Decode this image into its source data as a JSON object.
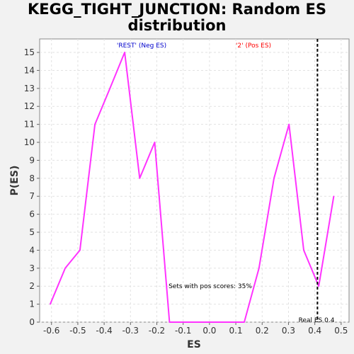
{
  "title_line1": "KEGG_TIGHT_JUNCTION: Random ES",
  "title_line2": "distribution",
  "chart_data": {
    "type": "line",
    "xlabel": "ES",
    "ylabel": "P(ES)",
    "xlim": [
      -0.645,
      0.53
    ],
    "ylim": [
      0,
      15.75
    ],
    "x_ticks": [
      -0.6,
      -0.5,
      -0.4,
      -0.3,
      -0.2,
      -0.1,
      0.0,
      0.1,
      0.2,
      0.3,
      0.4,
      0.5
    ],
    "x_tick_labels": [
      "-0.6",
      "-0.5",
      "-0.4",
      "-0.3",
      "-0.2",
      "-0.1",
      "0.0",
      "0.1",
      "0.2",
      "0.3",
      "0.4",
      "0.5"
    ],
    "y_ticks": [
      0,
      1,
      2,
      3,
      4,
      5,
      6,
      7,
      8,
      9,
      10,
      11,
      12,
      13,
      14,
      15
    ],
    "y_tick_labels": [
      "0",
      "1",
      "2",
      "3",
      "4",
      "5",
      "6",
      "7",
      "8",
      "9",
      "10",
      "11",
      "12",
      "13",
      "14",
      "15"
    ],
    "grid": true,
    "series": [
      {
        "color": "#ff33ff",
        "points": [
          [
            -0.605,
            1
          ],
          [
            -0.548,
            3
          ],
          [
            -0.492,
            4
          ],
          [
            -0.435,
            11
          ],
          [
            -0.378,
            13
          ],
          [
            -0.322,
            15
          ],
          [
            -0.265,
            8
          ],
          [
            -0.208,
            10
          ],
          [
            -0.152,
            0
          ],
          [
            -0.095,
            0
          ],
          [
            -0.038,
            0
          ],
          [
            0.018,
            0
          ],
          [
            0.075,
            0
          ],
          [
            0.132,
            0
          ],
          [
            0.188,
            3
          ],
          [
            0.245,
            8
          ],
          [
            0.302,
            11
          ],
          [
            0.358,
            4
          ],
          [
            0.415,
            2
          ],
          [
            0.472,
            7
          ]
        ]
      }
    ],
    "real_es": 0.41,
    "real_es_color": "#000000",
    "annotations": {
      "neg_label": "'REST' (Neg ES)",
      "neg_color": "#0000cc",
      "pos_label": "'2' (Pos ES)",
      "pos_color": "#ff0000",
      "pos_scores": "Sets with pos scores: 35%",
      "real_es_label": "Real ES 0.4"
    }
  }
}
